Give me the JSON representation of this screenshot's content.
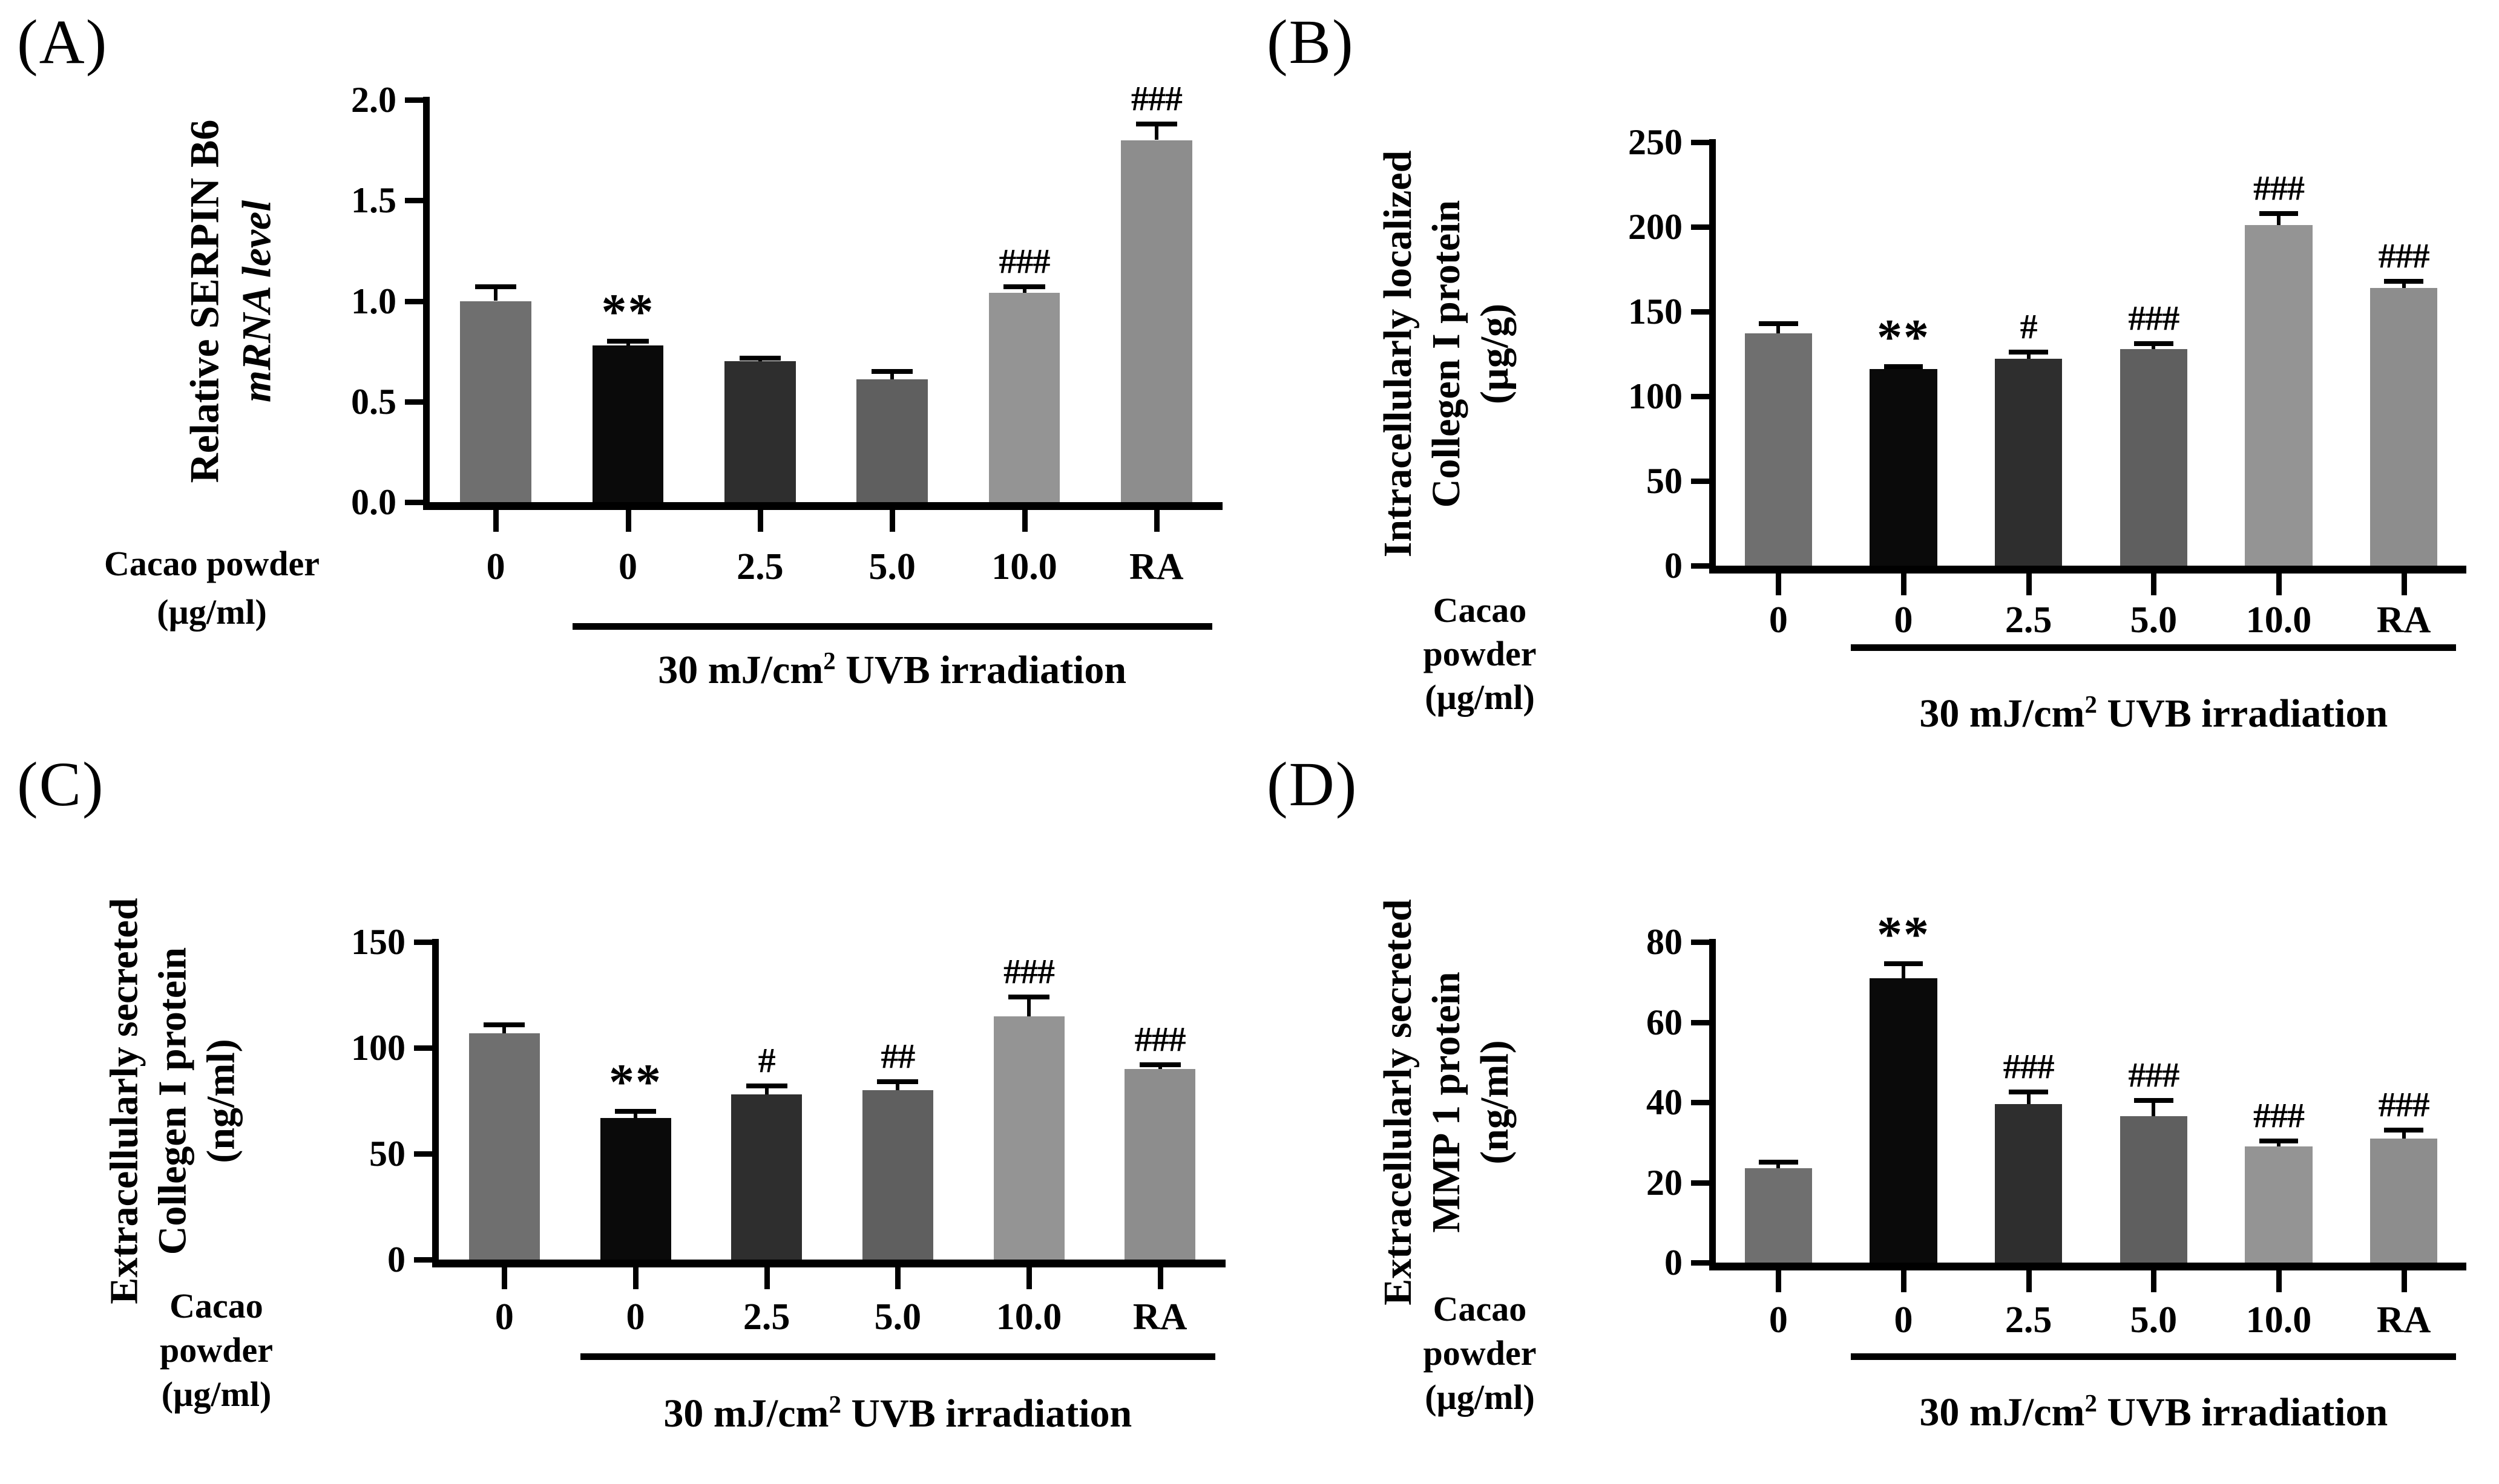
{
  "background_color": "#ffffff",
  "text_color": "#000000",
  "bar_colors": [
    "#6f6f6f",
    "#0a0a0a",
    "#2e2e2e",
    "#5f5f5f",
    "#949494",
    "#8d8d8d"
  ],
  "error_bar_color": "#000000",
  "chart_data": [
    {
      "type": "bar",
      "panel": "(A)",
      "ylabel": "Relative SERPIN B6 mRNA level",
      "ylabel_lines": [
        {
          "text": "Relative SERPIN B6",
          "italic": false
        },
        {
          "text": "mRNA level",
          "italic": true
        }
      ],
      "ylim": [
        0,
        2.0
      ],
      "yticks": [
        0,
        0.5,
        1.0,
        1.5,
        2.0
      ],
      "ytick_labels": [
        "0.0",
        "0.5",
        "1.0",
        "1.5",
        "2.0"
      ],
      "categories": [
        "0",
        "0",
        "2.5",
        "5.0",
        "10.0",
        "RA"
      ],
      "values": [
        1.0,
        0.78,
        0.7,
        0.61,
        1.04,
        1.8
      ],
      "errors": [
        0.07,
        0.02,
        0.015,
        0.04,
        0.03,
        0.08
      ],
      "sig_markers": [
        "",
        "**",
        "",
        "",
        "###",
        "###"
      ],
      "x_group_label": "Cacao powder (µg/ml)",
      "x_group_label_lines": [
        "Cacao powder",
        "(µg/ml)"
      ],
      "treatment_label": "30 mJ/cm2 UVB irradiation",
      "treatment_label_parts": {
        "prefix": "30 mJ/cm",
        "sup": "2",
        "suffix": " UVB irradiation"
      },
      "treatment_span_categories": [
        1,
        5
      ],
      "grid": false,
      "legend": "none"
    },
    {
      "type": "bar",
      "panel": "(B)",
      "ylabel": "Intracellularly localized Collegen I protein (µg/g)",
      "ylabel_lines": [
        {
          "text": "Intracellularly localized",
          "italic": false
        },
        {
          "text": "Collegen I protein",
          "italic": false
        },
        {
          "text": "(µg/g)",
          "italic": false
        }
      ],
      "ylim": [
        0,
        250
      ],
      "yticks": [
        0,
        50,
        100,
        150,
        200,
        250
      ],
      "ytick_labels": [
        "0",
        "50",
        "100",
        "150",
        "200",
        "250"
      ],
      "categories": [
        "0",
        "0",
        "2.5",
        "5.0",
        "10.0",
        "RA"
      ],
      "values": [
        137,
        116,
        122,
        128,
        201,
        164
      ],
      "errors": [
        6,
        1.5,
        4,
        3,
        7,
        4
      ],
      "sig_markers": [
        "",
        "**",
        "#",
        "###",
        "###",
        "###"
      ],
      "x_group_label": "Cacao powder (µg/ml)",
      "x_group_label_lines": [
        "Cacao",
        "powder",
        "(µg/ml)"
      ],
      "treatment_label": "30 mJ/cm2 UVB irradiation",
      "treatment_label_parts": {
        "prefix": "30 mJ/cm",
        "sup": "2",
        "suffix": " UVB irradiation"
      },
      "treatment_span_categories": [
        1,
        5
      ],
      "grid": false,
      "legend": "none"
    },
    {
      "type": "bar",
      "panel": "(C)",
      "ylabel": "Extracellularly secreted Collegen I protein (ng/ml)",
      "ylabel_lines": [
        {
          "text": "Extracellularly secreted",
          "italic": false
        },
        {
          "text": "Collegen I protein",
          "italic": false
        },
        {
          "text": "(ng/ml)",
          "italic": false
        }
      ],
      "ylim": [
        0,
        150
      ],
      "yticks": [
        0,
        50,
        100,
        150
      ],
      "ytick_labels": [
        "0",
        "50",
        "100",
        "150"
      ],
      "categories": [
        "0",
        "0",
        "2.5",
        "5.0",
        "10.0",
        "RA"
      ],
      "values": [
        107,
        67,
        78,
        80,
        115,
        90
      ],
      "errors": [
        4,
        3,
        4,
        4,
        9,
        2
      ],
      "sig_markers": [
        "",
        "**",
        "#",
        "##",
        "###",
        "###"
      ],
      "x_group_label": "Cacao powder (µg/ml)",
      "x_group_label_lines": [
        "Cacao",
        "powder",
        "(µg/ml)"
      ],
      "treatment_label": "30 mJ/cm2 UVB irradiation",
      "treatment_label_parts": {
        "prefix": "30 mJ/cm",
        "sup": "2",
        "suffix": " UVB irradiation"
      },
      "treatment_span_categories": [
        1,
        5
      ],
      "grid": false,
      "legend": "none"
    },
    {
      "type": "bar",
      "panel": "(D)",
      "ylabel": "Extracellularly secreted MMP 1 protein (ng/ml)",
      "ylabel_lines": [
        {
          "text": "Extracellularly secreted",
          "italic": false
        },
        {
          "text": "MMP 1 protein",
          "italic": false
        },
        {
          "text": "(ng/ml)",
          "italic": false
        }
      ],
      "ylim": [
        0,
        80
      ],
      "yticks": [
        0,
        20,
        40,
        60,
        80
      ],
      "ytick_labels": [
        "0",
        "20",
        "40",
        "60",
        "80"
      ],
      "categories": [
        "0",
        "0",
        "2.5",
        "5.0",
        "10.0",
        "RA"
      ],
      "values": [
        23.5,
        71,
        39.5,
        36.5,
        29,
        31
      ],
      "errors": [
        1.5,
        3.5,
        3,
        4,
        1.3,
        2
      ],
      "sig_markers": [
        "",
        "**",
        "###",
        "###",
        "###",
        "###"
      ],
      "x_group_label": "Cacao powder (µg/ml)",
      "x_group_label_lines": [
        "Cacao",
        "powder",
        "(µg/ml)"
      ],
      "treatment_label": "30 mJ/cm2 UVB irradiation",
      "treatment_label_parts": {
        "prefix": "30 mJ/cm",
        "sup": "2",
        "suffix": " UVB irradiation"
      },
      "treatment_span_categories": [
        1,
        5
      ],
      "grid": false,
      "legend": "none"
    }
  ]
}
